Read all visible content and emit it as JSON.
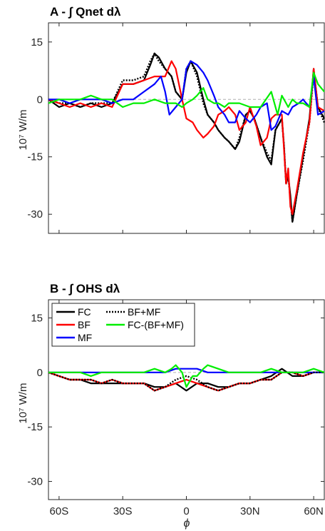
{
  "chart_data": [
    {
      "type": "line",
      "title": "A - ∫ Qnet dλ",
      "ylabel": "10⁷ W/m",
      "xlabel": "",
      "xlim": [
        -65,
        65
      ],
      "ylim": [
        -35,
        20
      ],
      "yticks": [
        15,
        0,
        -15,
        -30
      ],
      "xticks": [
        -60,
        -30,
        0,
        30,
        60
      ],
      "xticklabels": [
        "",
        "",
        "",
        "",
        ""
      ],
      "grid": false,
      "zero_line": true,
      "series": [
        {
          "name": "FC",
          "color": "#000000",
          "style": "solid",
          "x": [
            -65,
            -60,
            -55,
            -50,
            -45,
            -40,
            -35,
            -30,
            -25,
            -20,
            -17,
            -15,
            -13,
            -10,
            -7,
            -5,
            -2,
            0,
            2,
            5,
            8,
            10,
            13,
            15,
            18,
            20,
            23,
            25,
            28,
            30,
            32,
            35,
            38,
            40,
            42,
            45,
            46,
            47,
            48,
            49,
            50,
            52,
            55,
            58,
            60,
            62,
            65
          ],
          "y": [
            0,
            -2,
            -1,
            -2,
            -1,
            -2,
            -1,
            4,
            4,
            5,
            9,
            12,
            11,
            8,
            6,
            2,
            0,
            7,
            10,
            7,
            0,
            -4,
            -6,
            -8,
            -10,
            -11,
            -13,
            -11,
            -4,
            -3,
            -5,
            -10,
            -15,
            -17,
            -8,
            -5,
            -12,
            -22,
            -20,
            -25,
            -32,
            -25,
            -15,
            -5,
            8,
            -2,
            -5
          ]
        },
        {
          "name": "BF+MF",
          "color": "#000000",
          "style": "dotted",
          "x": [
            -65,
            -60,
            -55,
            -50,
            -45,
            -40,
            -35,
            -30,
            -25,
            -20,
            -17,
            -15,
            -13,
            -10,
            -7,
            -5,
            -2,
            0,
            2,
            5,
            8,
            10,
            13,
            15,
            18,
            20,
            23,
            25,
            28,
            30,
            32,
            35,
            38,
            40,
            42,
            45,
            46,
            47,
            48,
            49,
            50,
            52,
            55,
            58,
            60,
            62,
            65
          ],
          "y": [
            0,
            -1,
            -1,
            -2,
            -1,
            -1,
            -1,
            5,
            5,
            6,
            10,
            12,
            10,
            8,
            6,
            2,
            0,
            8,
            10,
            6,
            -1,
            -4,
            -6,
            -8,
            -10,
            -11,
            -13,
            -10,
            -4,
            -3,
            -5,
            -10,
            -14,
            -16,
            -8,
            -5,
            -12,
            -22,
            -20,
            -26,
            -32,
            -25,
            -16,
            -6,
            7,
            -2,
            -6
          ]
        },
        {
          "name": "BF",
          "color": "#ff0000",
          "style": "solid",
          "x": [
            -65,
            -60,
            -55,
            -50,
            -45,
            -40,
            -35,
            -30,
            -25,
            -20,
            -15,
            -10,
            -7,
            -5,
            -2,
            0,
            3,
            5,
            8,
            10,
            13,
            15,
            18,
            20,
            23,
            25,
            28,
            30,
            33,
            35,
            38,
            40,
            42,
            45,
            47,
            48,
            49,
            50,
            52,
            55,
            58,
            60,
            62,
            65
          ],
          "y": [
            0,
            -1,
            -2,
            -1,
            -2,
            -1,
            -2,
            4,
            4,
            5,
            6,
            6,
            10,
            8,
            0,
            -5,
            -6,
            -8,
            -10,
            -9,
            -7,
            -4,
            -3,
            -2,
            -4,
            -8,
            -6,
            -2,
            -7,
            -12,
            -10,
            -5,
            -4,
            -4,
            -22,
            -18,
            -28,
            -30,
            -24,
            -14,
            -6,
            8,
            -2,
            -3
          ]
        },
        {
          "name": "MF",
          "color": "#0000ff",
          "style": "solid",
          "x": [
            -65,
            -60,
            -55,
            -50,
            -45,
            -40,
            -35,
            -30,
            -25,
            -20,
            -15,
            -12,
            -10,
            -8,
            -5,
            -2,
            0,
            2,
            5,
            8,
            10,
            13,
            15,
            18,
            20,
            23,
            25,
            28,
            30,
            33,
            35,
            38,
            40,
            42,
            45,
            48,
            50,
            53,
            55,
            58,
            60,
            62,
            65
          ],
          "y": [
            0,
            0,
            -1,
            0,
            0,
            0,
            -1,
            0,
            0,
            2,
            4,
            6,
            2,
            -4,
            -2,
            0,
            8,
            10,
            9,
            7,
            5,
            1,
            -2,
            -4,
            -6,
            -6,
            -3,
            -5,
            -6,
            -4,
            -2,
            -1,
            -8,
            -7,
            -3,
            -4,
            -2,
            -1,
            0,
            -2,
            6,
            -4,
            -3
          ]
        },
        {
          "name": "FC-(BF+MF)",
          "color": "#00ee00",
          "style": "solid",
          "x": [
            -65,
            -60,
            -55,
            -50,
            -45,
            -40,
            -35,
            -30,
            -25,
            -20,
            -15,
            -10,
            -7,
            -5,
            -2,
            0,
            3,
            5,
            8,
            10,
            13,
            15,
            18,
            20,
            25,
            30,
            35,
            40,
            43,
            45,
            48,
            50,
            52,
            55,
            58,
            60,
            62,
            65
          ],
          "y": [
            -1,
            0,
            0,
            0,
            1,
            0,
            0,
            -2,
            -1,
            -1,
            0,
            -1,
            -1,
            -1,
            -2,
            -1,
            0,
            1,
            3,
            0,
            -1,
            -1,
            -2,
            -1,
            -1,
            -2,
            -2,
            2,
            -4,
            1,
            -2,
            0,
            -1,
            -1,
            -2,
            7,
            4,
            2
          ]
        }
      ]
    },
    {
      "type": "line",
      "title": "B - ∫ OHS dλ",
      "ylabel": "10⁷ W/m",
      "xlabel": "ϕ",
      "xlim": [
        -65,
        65
      ],
      "ylim": [
        -35,
        20
      ],
      "yticks": [
        15,
        0,
        -15,
        -30
      ],
      "xticks": [
        -60,
        -30,
        0,
        30,
        60
      ],
      "xticklabels": [
        "60S",
        "30S",
        "0",
        "30N",
        "60N"
      ],
      "grid": false,
      "zero_line": true,
      "legend": "top-left",
      "series": [
        {
          "name": "FC",
          "color": "#000000",
          "style": "solid",
          "x": [
            -65,
            -60,
            -55,
            -50,
            -45,
            -40,
            -35,
            -30,
            -25,
            -20,
            -15,
            -10,
            -5,
            0,
            5,
            10,
            15,
            20,
            25,
            30,
            35,
            40,
            45,
            50,
            55,
            60,
            65
          ],
          "y": [
            0,
            -1,
            -2,
            -2,
            -3,
            -3,
            -3,
            -3,
            -3,
            -3,
            -4,
            -4,
            -3,
            -5,
            -3,
            -3,
            -4,
            -4,
            -3,
            -3,
            -2,
            -1,
            1,
            -1,
            -1,
            0,
            0
          ]
        },
        {
          "name": "BF",
          "color": "#ff0000",
          "style": "solid",
          "x": [
            -65,
            -60,
            -55,
            -50,
            -45,
            -40,
            -35,
            -30,
            -25,
            -20,
            -15,
            -10,
            -5,
            0,
            5,
            10,
            15,
            20,
            25,
            30,
            35,
            40,
            45,
            50,
            55,
            60,
            65
          ],
          "y": [
            0,
            -1,
            -2,
            -2,
            -2,
            -3,
            -2,
            -3,
            -3,
            -3,
            -5,
            -4,
            -3,
            -2,
            -3,
            -4,
            -5,
            -4,
            -3,
            -3,
            -2,
            -2,
            0,
            0,
            -1,
            0,
            0
          ]
        },
        {
          "name": "MF",
          "color": "#0000ff",
          "style": "solid",
          "x": [
            -65,
            -60,
            -55,
            -50,
            -45,
            -40,
            -35,
            -30,
            -25,
            -20,
            -15,
            -10,
            -5,
            0,
            5,
            10,
            15,
            20,
            25,
            30,
            35,
            40,
            45,
            50,
            55,
            60,
            65
          ],
          "y": [
            0,
            0,
            0,
            0,
            0,
            0,
            0,
            0,
            0,
            0,
            0,
            0,
            1,
            1,
            1,
            0,
            0,
            0,
            0,
            0,
            0,
            0,
            0,
            0,
            0,
            0,
            0
          ]
        },
        {
          "name": "BF+MF",
          "color": "#000000",
          "style": "dotted",
          "x": [
            -65,
            -60,
            -55,
            -50,
            -45,
            -40,
            -35,
            -30,
            -25,
            -20,
            -15,
            -10,
            -5,
            0,
            5,
            10,
            15,
            20,
            25,
            30,
            35,
            40,
            45,
            50,
            55,
            60,
            65
          ],
          "y": [
            0,
            -1,
            -2,
            -2,
            -2,
            -3,
            -2,
            -3,
            -3,
            -3,
            -5,
            -4,
            -2,
            -1,
            -2,
            -4,
            -5,
            -4,
            -3,
            -3,
            -2,
            -2,
            0,
            0,
            -1,
            0,
            0
          ]
        },
        {
          "name": "FC-(BF+MF)",
          "color": "#00ee00",
          "style": "solid",
          "x": [
            -65,
            -60,
            -55,
            -50,
            -45,
            -40,
            -35,
            -30,
            -25,
            -20,
            -15,
            -10,
            -7,
            -5,
            -2,
            0,
            3,
            5,
            8,
            10,
            15,
            20,
            25,
            30,
            35,
            40,
            45,
            50,
            55,
            60,
            65
          ],
          "y": [
            0,
            0,
            0,
            0,
            -1,
            0,
            0,
            0,
            0,
            0,
            1,
            0,
            1,
            2,
            0,
            -4,
            -1,
            -1,
            1,
            2,
            1,
            0,
            0,
            0,
            0,
            1,
            0,
            0,
            0,
            1,
            0
          ]
        }
      ]
    }
  ]
}
